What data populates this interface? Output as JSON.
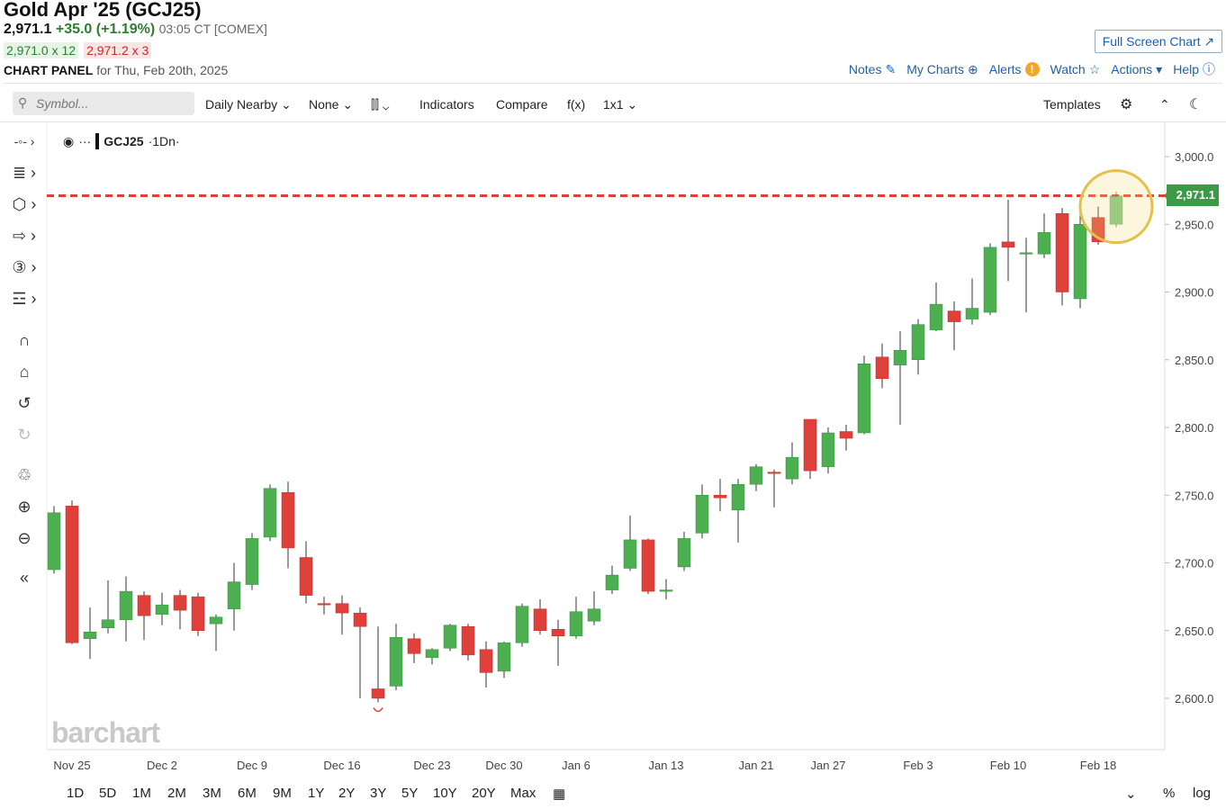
{
  "header": {
    "title": "Gold Apr '25 (GCJ25)",
    "last": "2,971.1",
    "change": "+35.0 (+1.19%)",
    "time": "03:05 CT [COMEX]",
    "bid": "2,971.0 x 12",
    "ask": "2,971.2 x 3",
    "panel_label": "CHART PANEL",
    "panel_date": "for Thu, Feb 20th, 2025",
    "full_screen": "Full Screen Chart"
  },
  "links": {
    "notes": "Notes",
    "my_charts": "My Charts",
    "alerts": "Alerts",
    "watch": "Watch",
    "actions": "Actions",
    "help": "Help"
  },
  "toolbar": {
    "symbol_placeholder": "Symbol...",
    "period": "Daily Nearby",
    "overlay": "None",
    "indicators": "Indicators",
    "compare": "Compare",
    "fx": "f(x)",
    "layout": "1x1",
    "templates": "Templates"
  },
  "legend": {
    "symbol": "GCJ25",
    "interval": "·1Dn·"
  },
  "watermark": "barchart",
  "ranges": [
    "1D",
    "5D",
    "1M",
    "2M",
    "3M",
    "6M",
    "9M",
    "1Y",
    "2Y",
    "3Y",
    "5Y",
    "10Y",
    "20Y",
    "Max"
  ],
  "bottom_right": {
    "percent": "%",
    "log": "log"
  },
  "colors": {
    "up": "#4caf50",
    "down": "#e0403a",
    "last_line": "#e0403a",
    "badge": "#3c9a47",
    "link": "#1f5fa8"
  },
  "chart_data": {
    "type": "candlestick",
    "last_price": 2971.1,
    "last_price_label": "2,971.1",
    "ylim": [
      2580,
      3010
    ],
    "y_ticks": [
      2600,
      2650,
      2700,
      2750,
      2800,
      2850,
      2900,
      2950,
      3000
    ],
    "y_tick_labels": [
      "2,600.0",
      "2,650.0",
      "2,700.0",
      "2,750.0",
      "2,800.0",
      "2,850.0",
      "2,900.0",
      "2,950.0",
      "3,000.0"
    ],
    "x_tick_labels": [
      {
        "label": "Nov 25",
        "index": 1
      },
      {
        "label": "Dec 2",
        "index": 6
      },
      {
        "label": "Dec 9",
        "index": 11
      },
      {
        "label": "Dec 16",
        "index": 16
      },
      {
        "label": "Dec 23",
        "index": 21
      },
      {
        "label": "Dec 30",
        "index": 25
      },
      {
        "label": "Jan 6",
        "index": 29
      },
      {
        "label": "Jan 13",
        "index": 34
      },
      {
        "label": "Jan 21",
        "index": 39
      },
      {
        "label": "Jan 27",
        "index": 43
      },
      {
        "label": "Feb 3",
        "index": 48
      },
      {
        "label": "Feb 10",
        "index": 53
      },
      {
        "label": "Feb 18",
        "index": 58
      }
    ],
    "candles": [
      {
        "o": 2695,
        "h": 2742,
        "l": 2692,
        "c": 2737
      },
      {
        "o": 2742,
        "h": 2746,
        "l": 2640,
        "c": 2641
      },
      {
        "o": 2644,
        "h": 2667,
        "l": 2629,
        "c": 2649
      },
      {
        "o": 2652,
        "h": 2687,
        "l": 2648,
        "c": 2658
      },
      {
        "o": 2658,
        "h": 2690,
        "l": 2642,
        "c": 2679
      },
      {
        "o": 2676,
        "h": 2679,
        "l": 2643,
        "c": 2661
      },
      {
        "o": 2662,
        "h": 2678,
        "l": 2654,
        "c": 2669
      },
      {
        "o": 2676,
        "h": 2680,
        "l": 2651,
        "c": 2665
      },
      {
        "o": 2675,
        "h": 2678,
        "l": 2646,
        "c": 2650
      },
      {
        "o": 2655,
        "h": 2662,
        "l": 2635,
        "c": 2660
      },
      {
        "o": 2666,
        "h": 2700,
        "l": 2650,
        "c": 2686
      },
      {
        "o": 2684,
        "h": 2722,
        "l": 2680,
        "c": 2718
      },
      {
        "o": 2719,
        "h": 2758,
        "l": 2716,
        "c": 2755
      },
      {
        "o": 2752,
        "h": 2760,
        "l": 2696,
        "c": 2711
      },
      {
        "o": 2704,
        "h": 2716,
        "l": 2670,
        "c": 2676
      },
      {
        "o": 2670,
        "h": 2675,
        "l": 2662,
        "c": 2669
      },
      {
        "o": 2670,
        "h": 2676,
        "l": 2647,
        "c": 2663
      },
      {
        "o": 2663,
        "h": 2667,
        "l": 2600,
        "c": 2653
      },
      {
        "o": 2607,
        "h": 2653,
        "l": 2597,
        "c": 2600
      },
      {
        "o": 2609,
        "h": 2655,
        "l": 2606,
        "c": 2645
      },
      {
        "o": 2644,
        "h": 2648,
        "l": 2626,
        "c": 2633
      },
      {
        "o": 2630,
        "h": 2637,
        "l": 2625,
        "c": 2636
      },
      {
        "o": 2637,
        "h": 2655,
        "l": 2635,
        "c": 2654
      },
      {
        "o": 2653,
        "h": 2655,
        "l": 2628,
        "c": 2632
      },
      {
        "o": 2636,
        "h": 2642,
        "l": 2608,
        "c": 2619
      },
      {
        "o": 2620,
        "h": 2642,
        "l": 2615,
        "c": 2641
      },
      {
        "o": 2641,
        "h": 2670,
        "l": 2638,
        "c": 2668
      },
      {
        "o": 2666,
        "h": 2673,
        "l": 2647,
        "c": 2650
      },
      {
        "o": 2651,
        "h": 2658,
        "l": 2624,
        "c": 2646
      },
      {
        "o": 2646,
        "h": 2675,
        "l": 2644,
        "c": 2664
      },
      {
        "o": 2657,
        "h": 2679,
        "l": 2654,
        "c": 2666
      },
      {
        "o": 2680,
        "h": 2698,
        "l": 2677,
        "c": 2691
      },
      {
        "o": 2696,
        "h": 2735,
        "l": 2694,
        "c": 2717
      },
      {
        "o": 2717,
        "h": 2718,
        "l": 2677,
        "c": 2679
      },
      {
        "o": 2680,
        "h": 2688,
        "l": 2673,
        "c": 2680
      },
      {
        "o": 2697,
        "h": 2723,
        "l": 2694,
        "c": 2718
      },
      {
        "o": 2722,
        "h": 2758,
        "l": 2718,
        "c": 2750
      },
      {
        "o": 2750,
        "h": 2762,
        "l": 2738,
        "c": 2748
      },
      {
        "o": 2739,
        "h": 2762,
        "l": 2715,
        "c": 2758
      },
      {
        "o": 2758,
        "h": 2773,
        "l": 2753,
        "c": 2771
      },
      {
        "o": 2767,
        "h": 2769,
        "l": 2741,
        "c": 2766
      },
      {
        "o": 2762,
        "h": 2789,
        "l": 2758,
        "c": 2778
      },
      {
        "o": 2806,
        "h": 2806,
        "l": 2762,
        "c": 2768
      },
      {
        "o": 2771,
        "h": 2800,
        "l": 2766,
        "c": 2796
      },
      {
        "o": 2797,
        "h": 2802,
        "l": 2783,
        "c": 2792
      },
      {
        "o": 2796,
        "h": 2853,
        "l": 2795,
        "c": 2847
      },
      {
        "o": 2852,
        "h": 2862,
        "l": 2829,
        "c": 2836
      },
      {
        "o": 2846,
        "h": 2871,
        "l": 2802,
        "c": 2857
      },
      {
        "o": 2850,
        "h": 2880,
        "l": 2839,
        "c": 2876
      },
      {
        "o": 2872,
        "h": 2907,
        "l": 2871,
        "c": 2891
      },
      {
        "o": 2886,
        "h": 2893,
        "l": 2857,
        "c": 2878
      },
      {
        "o": 2880,
        "h": 2910,
        "l": 2876,
        "c": 2888
      },
      {
        "o": 2885,
        "h": 2936,
        "l": 2883,
        "c": 2933
      },
      {
        "o": 2937,
        "h": 2968,
        "l": 2908,
        "c": 2933
      },
      {
        "o": 2928,
        "h": 2940,
        "l": 2885,
        "c": 2929
      },
      {
        "o": 2928,
        "h": 2958,
        "l": 2925,
        "c": 2944
      },
      {
        "o": 2958,
        "h": 2962,
        "l": 2890,
        "c": 2900
      },
      {
        "o": 2895,
        "h": 2961,
        "l": 2888,
        "c": 2950
      },
      {
        "o": 2955,
        "h": 2963,
        "l": 2935,
        "c": 2937
      },
      {
        "o": 2950,
        "h": 2974,
        "l": 2948,
        "c": 2971
      }
    ]
  }
}
